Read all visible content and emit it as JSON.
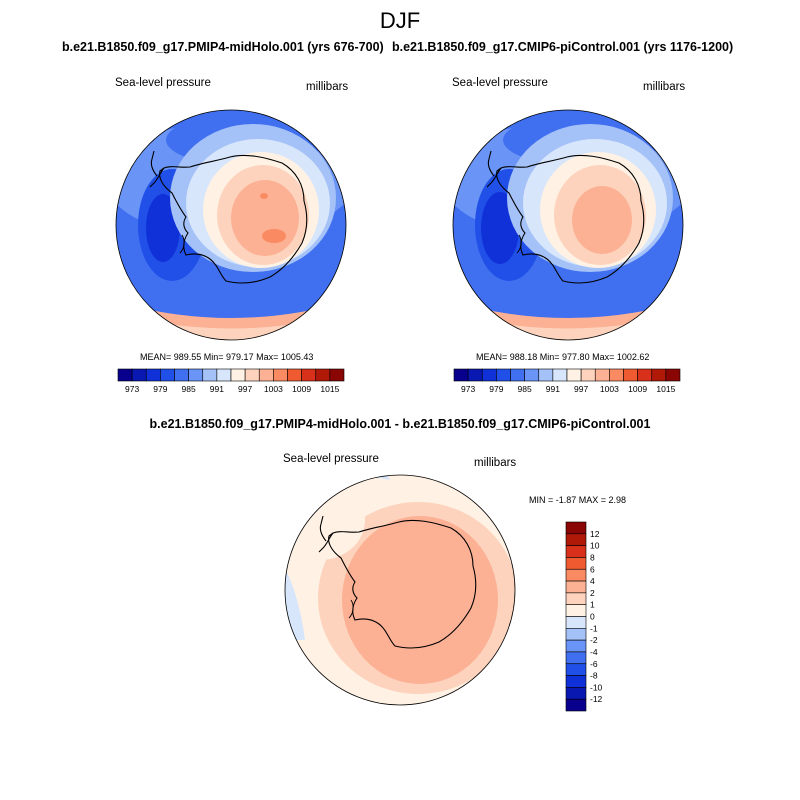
{
  "figure": {
    "season": "DJF",
    "panels": {
      "left": {
        "title": "b.e21.B1850.f09_g17.PMIP4-midHolo.001 (yrs 676-700)",
        "variable": "Sea-level pressure",
        "units": "millibars",
        "stats": "MEAN= 989.55  Min= 979.17  Max= 1005.43"
      },
      "right": {
        "title": "b.e21.B1850.f09_g17.CMIP6-piControl.001 (yrs 1176-1200)",
        "variable": "Sea-level pressure",
        "units": "millibars",
        "stats": "MEAN= 988.18  Min= 977.80  Max= 1002.62"
      },
      "diff": {
        "title": "b.e21.B1850.f09_g17.PMIP4-midHolo.001 - b.e21.B1850.f09_g17.CMIP6-piControl.001",
        "variable": "Sea-level pressure",
        "units": "millibars",
        "stats": "MIN =  -1.87 MAX =   2.98"
      }
    }
  },
  "chart_data": [
    {
      "type": "heatmap",
      "projection": "south-polar-stereographic",
      "title": "b.e21.B1850.f09_g17.PMIP4-midHolo.001 (yrs 676-700)",
      "variable": "Sea-level pressure",
      "units": "millibars",
      "mean": 989.55,
      "min": 979.17,
      "max": 1005.43,
      "colorbar": {
        "orientation": "horizontal",
        "levels": [
          973,
          976,
          979,
          982,
          985,
          988,
          991,
          994,
          997,
          1000,
          1003,
          1006,
          1009,
          1012,
          1015
        ],
        "tick_labels": [
          "973",
          "979",
          "985",
          "991",
          "997",
          "1003",
          "1009",
          "1015"
        ],
        "colors": [
          "#08008c",
          "#0818b0",
          "#1030d8",
          "#2050e8",
          "#4070f0",
          "#6a94f5",
          "#a4c2f8",
          "#d8e6fb",
          "#fff2e4",
          "#fdd3bd",
          "#fcb194",
          "#fa8a62",
          "#f05a30",
          "#d8301a",
          "#b01808",
          "#8a0604"
        ]
      }
    },
    {
      "type": "heatmap",
      "projection": "south-polar-stereographic",
      "title": "b.e21.B1850.f09_g17.CMIP6-piControl.001 (yrs 1176-1200)",
      "variable": "Sea-level pressure",
      "units": "millibars",
      "mean": 988.18,
      "min": 977.8,
      "max": 1002.62,
      "colorbar": {
        "orientation": "horizontal",
        "levels": [
          973,
          976,
          979,
          982,
          985,
          988,
          991,
          994,
          997,
          1000,
          1003,
          1006,
          1009,
          1012,
          1015
        ],
        "tick_labels": [
          "973",
          "979",
          "985",
          "991",
          "997",
          "1003",
          "1009",
          "1015"
        ],
        "colors": [
          "#08008c",
          "#0818b0",
          "#1030d8",
          "#2050e8",
          "#4070f0",
          "#6a94f5",
          "#a4c2f8",
          "#d8e6fb",
          "#fff2e4",
          "#fdd3bd",
          "#fcb194",
          "#fa8a62",
          "#f05a30",
          "#d8301a",
          "#b01808",
          "#8a0604"
        ]
      }
    },
    {
      "type": "heatmap",
      "projection": "south-polar-stereographic",
      "title": "b.e21.B1850.f09_g17.PMIP4-midHolo.001 - b.e21.B1850.f09_g17.CMIP6-piControl.001",
      "variable": "Sea-level pressure",
      "units": "millibars",
      "min": -1.87,
      "max": 2.98,
      "colorbar": {
        "orientation": "vertical",
        "levels": [
          12,
          10,
          8,
          6,
          4,
          2,
          1,
          0,
          -1,
          -2,
          -4,
          -6,
          -8,
          -10,
          -12
        ],
        "tick_labels": [
          "12",
          "10",
          "8",
          "6",
          "4",
          "2",
          "1",
          "0",
          "-1",
          "-2",
          "-4",
          "-6",
          "-8",
          "-10",
          "-12"
        ],
        "colors": [
          "#8a0604",
          "#b01808",
          "#d8301a",
          "#f05a30",
          "#fa8a62",
          "#fcb194",
          "#fdd3bd",
          "#fff2e4",
          "#d8e6fb",
          "#a4c2f8",
          "#6a94f5",
          "#4070f0",
          "#2050e8",
          "#1030d8",
          "#0818b0",
          "#08008c"
        ]
      }
    }
  ]
}
